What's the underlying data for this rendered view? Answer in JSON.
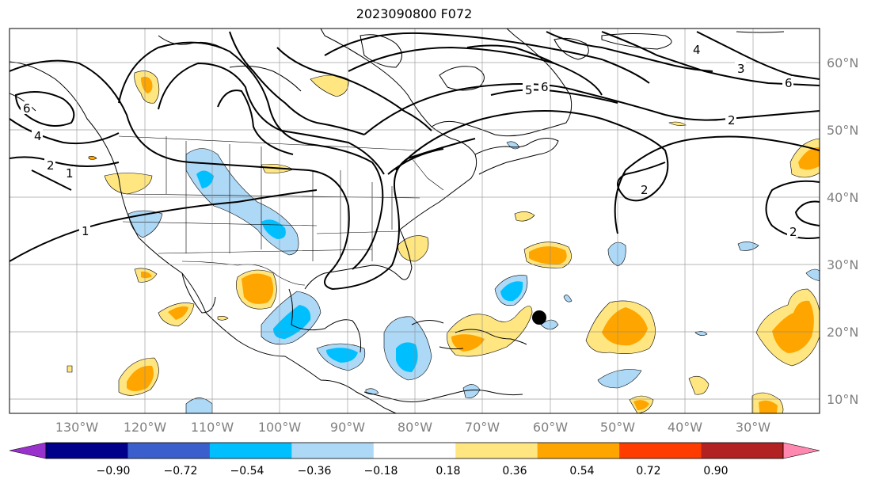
{
  "title": "2023090800 F072",
  "lon_labels": [
    "130°W",
    "120°W",
    "110°W",
    "100°W",
    "90°W",
    "80°W",
    "70°W",
    "60°W",
    "50°W",
    "40°W",
    "30°W"
  ],
  "lat_labels": [
    "60°N",
    "50°N",
    "40°N",
    "30°N",
    "20°N",
    "10°N"
  ],
  "colorbar": {
    "ticks": [
      "−0.90",
      "−0.72",
      "−0.54",
      "−0.36",
      "−0.18",
      "0.18",
      "0.36",
      "0.54",
      "0.72",
      "0.90"
    ],
    "colors": [
      "#9932cc",
      "#00008b",
      "#3a5fcd",
      "#00bfff",
      "#add8f6",
      "#ffffff",
      "#ffe680",
      "#ffa500",
      "#ff3c00",
      "#b22222",
      "#ff88b0"
    ]
  },
  "contour_labels": [
    {
      "text": "1",
      "name": "label-1-west"
    },
    {
      "text": "2",
      "name": "label-2-west"
    },
    {
      "text": "4",
      "name": "label-4-west"
    },
    {
      "text": "6",
      "name": "label-6-west"
    },
    {
      "text": "2",
      "name": "label-2-atlantic"
    },
    {
      "text": "6",
      "name": "label-6-north"
    },
    {
      "text": "4",
      "name": "label-4-north"
    },
    {
      "text": "3",
      "name": "label-3-north"
    },
    {
      "text": "6",
      "name": "label-6-east"
    },
    {
      "text": "2",
      "name": "label-2-east"
    },
    {
      "text": "2",
      "name": "label-2-southeast"
    },
    {
      "text": "5",
      "name": "label-5-canada"
    },
    {
      "text": "1",
      "name": "label-1-pacific"
    }
  ]
}
